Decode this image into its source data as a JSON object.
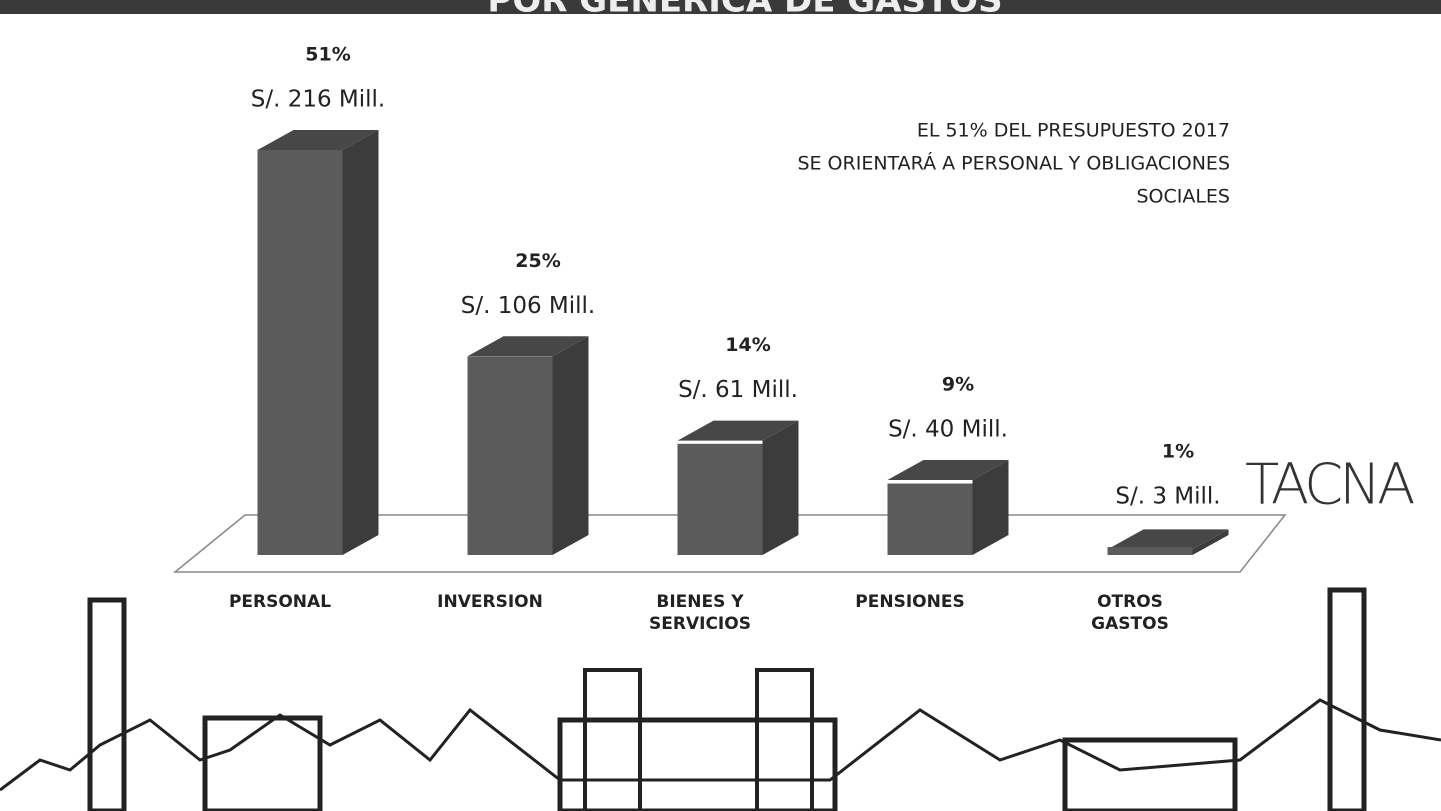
{
  "chart_data": {
    "type": "bar3d",
    "title": "POR GENERICA DE GASTOS",
    "annotation": [
      "EL 51% DEL PRESUPUESTO 2017",
      "SE ORIENTARÁ A PERSONAL Y OBLIGACIONES",
      "SOCIALES"
    ],
    "logo": "TACNA",
    "categories": [
      "PERSONAL",
      "INVERSION",
      "BIENES Y SERVICIOS",
      "PENSIONES",
      "OTROS GASTOS"
    ],
    "values": [
      51,
      25,
      14,
      9,
      1
    ],
    "value_labels": [
      "51%",
      "25%",
      "14%",
      "9%",
      "1%"
    ],
    "amounts": [
      216,
      106,
      61,
      40,
      3
    ],
    "amount_labels": [
      "S/. 216  Mill.",
      "S/. 106  Mill.",
      "S/. 61 Mill.",
      "S/. 40  Mill.",
      "S/. 3  Mill."
    ],
    "color": "#5b5b5b"
  }
}
